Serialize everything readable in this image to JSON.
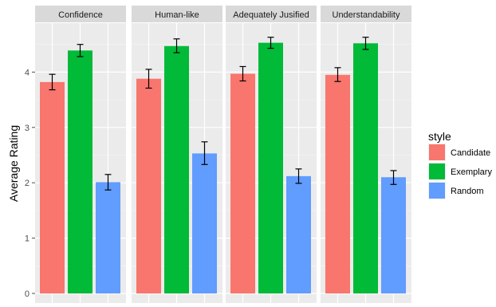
{
  "chart_data": {
    "type": "bar",
    "ylabel": "Average Rating",
    "xlabel": "",
    "y_ticks": [
      "0",
      "1",
      "2",
      "3",
      "4"
    ],
    "ylim": [
      0,
      4.75
    ],
    "grid": true,
    "facets": [
      {
        "title": "Confidence",
        "bars": [
          {
            "style": "Candidate",
            "value": 3.82,
            "err_low": 3.68,
            "err_high": 3.96
          },
          {
            "style": "Exemplary",
            "value": 4.39,
            "err_low": 4.28,
            "err_high": 4.5
          },
          {
            "style": "Random",
            "value": 2.01,
            "err_low": 1.87,
            "err_high": 2.15
          }
        ]
      },
      {
        "title": "Human-like",
        "bars": [
          {
            "style": "Candidate",
            "value": 3.88,
            "err_low": 3.71,
            "err_high": 4.05
          },
          {
            "style": "Exemplary",
            "value": 4.47,
            "err_low": 4.35,
            "err_high": 4.6
          },
          {
            "style": "Random",
            "value": 2.53,
            "err_low": 2.33,
            "err_high": 2.74
          }
        ]
      },
      {
        "title": "Adequately Jusified",
        "bars": [
          {
            "style": "Candidate",
            "value": 3.97,
            "err_low": 3.84,
            "err_high": 4.1
          },
          {
            "style": "Exemplary",
            "value": 4.53,
            "err_low": 4.43,
            "err_high": 4.63
          },
          {
            "style": "Random",
            "value": 2.12,
            "err_low": 1.99,
            "err_high": 2.25
          }
        ]
      },
      {
        "title": "Understandability",
        "bars": [
          {
            "style": "Candidate",
            "value": 3.95,
            "err_low": 3.83,
            "err_high": 4.08
          },
          {
            "style": "Exemplary",
            "value": 4.52,
            "err_low": 4.41,
            "err_high": 4.63
          },
          {
            "style": "Random",
            "value": 2.1,
            "err_low": 1.97,
            "err_high": 2.22
          }
        ]
      }
    ],
    "legend": {
      "title": "style",
      "placement": "right",
      "items": [
        {
          "label": "Candidate",
          "color": "#F8766D"
        },
        {
          "label": "Exemplary",
          "color": "#00BA38"
        },
        {
          "label": "Random",
          "color": "#619CFF"
        }
      ]
    }
  }
}
